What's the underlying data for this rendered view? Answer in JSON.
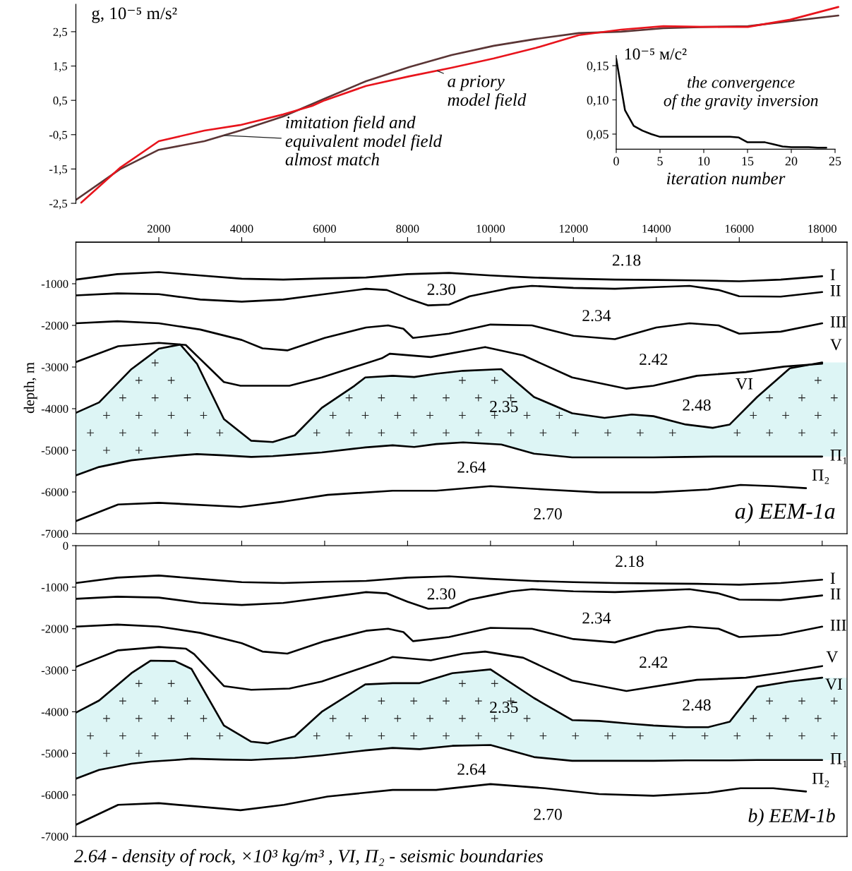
{
  "chart_data": [
    {
      "type": "line",
      "ylabel": "g, 10⁻⁵ m/s²",
      "xlim": [
        0,
        18600
      ],
      "ylim": [
        -3.63,
        3.3
      ],
      "line_style": "solid",
      "xticks": [
        2000,
        4000,
        6000,
        8000,
        10000,
        12000,
        14000,
        16000,
        18000
      ],
      "yticks": [
        {
          "value": -2.5,
          "label": "-2,5"
        },
        {
          "value": -1.5,
          "label": "-1,5"
        },
        {
          "value": -0.5,
          "label": "-0,5"
        },
        {
          "value": 0.5,
          "label": "0,5"
        },
        {
          "value": 1.5,
          "label": "1,5"
        },
        {
          "value": 2.5,
          "label": "2,5"
        }
      ],
      "series": [
        {
          "color": "#5b3535",
          "x": [
            0,
            1060,
            2000,
            3100,
            3960,
            5000,
            6000,
            7000,
            8040,
            9060,
            10080,
            11100,
            12130,
            13150,
            14170,
            15190,
            16210,
            17230,
            18390
          ],
          "values": [
            -2.4,
            -1.51,
            -0.94,
            -0.69,
            -0.38,
            0.03,
            0.55,
            1.06,
            1.47,
            1.82,
            2.09,
            2.29,
            2.46,
            2.5,
            2.6,
            2.64,
            2.66,
            2.81,
            2.97
          ]
        },
        {
          "color": "#e8141c",
          "x": [
            130,
            1060,
            2000,
            3100,
            3960,
            5000,
            5700,
            6000,
            7000,
            8040,
            9060,
            10080,
            11100,
            12130,
            13150,
            14170,
            15190,
            16210,
            17230,
            18390
          ],
          "values": [
            -2.48,
            -1.47,
            -0.69,
            -0.38,
            -0.22,
            0.09,
            0.34,
            0.5,
            0.92,
            1.2,
            1.45,
            1.72,
            2.03,
            2.4,
            2.56,
            2.66,
            2.64,
            2.64,
            2.85,
            3.22
          ]
        }
      ],
      "annotations": [
        {
          "text": "a priory\nmodel field",
          "x": 8720,
          "y": 1.36
        },
        {
          "text": "imitation field and\nequivalent model field\nalmost match",
          "x": 3580,
          "y": -0.52
        }
      ]
    },
    {
      "type": "line",
      "ylabel": "10⁻⁵ м/с²",
      "xlabel": "iteration number",
      "xlim": [
        0,
        25
      ],
      "ylim": [
        0.028,
        0.165
      ],
      "line_style": "solid",
      "xticks": [
        0,
        5,
        10,
        15,
        20,
        25
      ],
      "yticks": [
        {
          "value": 0.05,
          "label": "0,05"
        },
        {
          "value": 0.1,
          "label": "0,10"
        },
        {
          "value": 0.15,
          "label": "0,15"
        }
      ],
      "series": [
        {
          "color": "#000000",
          "x": [
            0,
            1,
            2,
            3,
            4,
            5,
            6,
            7,
            8,
            9,
            10,
            11,
            12,
            13,
            14,
            15,
            16,
            17,
            18,
            19,
            20,
            21,
            22,
            23,
            24
          ],
          "values": [
            0.16,
            0.085,
            0.062,
            0.055,
            0.05,
            0.046,
            0.046,
            0.046,
            0.046,
            0.046,
            0.046,
            0.046,
            0.046,
            0.046,
            0.045,
            0.038,
            0.038,
            0.038,
            0.035,
            0.032,
            0.031,
            0.031,
            0.031,
            0.03,
            0.03
          ]
        }
      ],
      "annotations": [
        "the convergence\nof the gravity inversion"
      ]
    },
    {
      "type": "line",
      "title": "a) EEM-1a",
      "ylabel": "depth, m",
      "xlim": [
        0,
        18600
      ],
      "ylim": [
        -7000,
        0
      ],
      "tick_labels": "y",
      "line_style": "solid",
      "xticks": [
        2000,
        4000,
        6000,
        8000,
        10000,
        12000,
        14000,
        16000,
        18000
      ],
      "yticks": [
        -7000,
        -6000,
        -5000,
        -4000,
        -3000,
        -2000,
        -1000
      ],
      "series": [
        {
          "name": "I",
          "color": "#000000",
          "x": [
            0,
            1000,
            2000,
            3000,
            4000,
            5000,
            6000,
            7000,
            8000,
            9000,
            10000,
            11000,
            12000,
            13000,
            14000,
            15000,
            16000,
            17000,
            18000
          ],
          "values": [
            -900,
            -770,
            -720,
            -800,
            -880,
            -900,
            -870,
            -850,
            -770,
            -740,
            -800,
            -850,
            -880,
            -900,
            -910,
            -920,
            -940,
            -900,
            -820
          ]
        },
        {
          "name": "II",
          "color": "#000000",
          "x": [
            0,
            1000,
            2000,
            3000,
            4000,
            5000,
            6000,
            7000,
            7500,
            8000,
            8500,
            9000,
            9500,
            10000,
            10500,
            11000,
            12000,
            13000,
            14000,
            14800,
            15500,
            16000,
            17000,
            18000
          ],
          "values": [
            -1280,
            -1230,
            -1250,
            -1380,
            -1430,
            -1380,
            -1250,
            -1120,
            -1150,
            -1350,
            -1520,
            -1500,
            -1300,
            -1200,
            -1100,
            -1050,
            -1100,
            -1120,
            -1080,
            -1050,
            -1150,
            -1300,
            -1310,
            -1200
          ]
        },
        {
          "name": "III",
          "color": "#000000",
          "x": [
            0,
            1000,
            2000,
            3000,
            4000,
            4500,
            5100,
            6000,
            7000,
            7530,
            7900,
            8130,
            9000,
            10000,
            11000,
            12000,
            13000,
            14000,
            14800,
            15500,
            16000,
            17000,
            18000
          ],
          "values": [
            -1950,
            -1900,
            -1950,
            -2100,
            -2350,
            -2550,
            -2600,
            -2300,
            -2050,
            -2000,
            -2080,
            -2300,
            -2200,
            -1980,
            -2000,
            -2250,
            -2330,
            -2050,
            -1950,
            -2000,
            -2200,
            -2150,
            -1950
          ]
        },
        {
          "name": "V",
          "color": "#000000",
          "x": [
            0,
            1020,
            2000,
            2650,
            2980,
            3570,
            3970,
            5150,
            5930,
            7380,
            7570,
            8560,
            9870,
            10790,
            11970,
            13280,
            13930,
            14980,
            16160,
            17080,
            18000
          ],
          "values": [
            -2880,
            -2500,
            -2420,
            -2470,
            -2790,
            -3360,
            -3450,
            -3450,
            -3250,
            -2790,
            -2680,
            -2760,
            -2520,
            -2720,
            -3250,
            -3520,
            -3450,
            -3210,
            -3120,
            -2990,
            -2920
          ]
        },
        {
          "name": "VI",
          "color": "#000000",
          "x": [
            0,
            560,
            1340,
            2000,
            2520,
            2920,
            3570,
            4230,
            4750,
            5280,
            5930,
            6720,
            6980,
            7640,
            8160,
            8690,
            9340,
            10260,
            11050,
            11970,
            12750,
            13410,
            13930,
            14710,
            15360,
            15770,
            16430,
            17220,
            18000
          ],
          "values": [
            -4100,
            -3850,
            -3050,
            -2560,
            -2460,
            -2920,
            -4250,
            -4770,
            -4800,
            -4640,
            -3980,
            -3450,
            -3250,
            -3210,
            -3240,
            -3160,
            -3090,
            -3050,
            -3720,
            -4110,
            -4220,
            -4140,
            -4180,
            -4380,
            -4460,
            -4380,
            -3720,
            -3030,
            -2890
          ]
        },
        {
          "name": "Π₁",
          "color": "#000000",
          "x": [
            0,
            560,
            1340,
            2000,
            2520,
            2920,
            3570,
            4230,
            4750,
            5280,
            5930,
            6720,
            6980,
            7640,
            8160,
            8690,
            9340,
            10260,
            11050,
            11970,
            12750,
            13410,
            13930,
            14710,
            15360,
            15770,
            16430,
            17220,
            18000
          ],
          "values": [
            -5600,
            -5400,
            -5240,
            -5170,
            -5120,
            -5090,
            -5120,
            -5160,
            -5140,
            -5100,
            -5050,
            -4960,
            -4930,
            -4880,
            -4920,
            -4850,
            -4810,
            -4860,
            -5080,
            -5170,
            -5170,
            -5170,
            -5170,
            -5160,
            -5150,
            -5150,
            -5150,
            -5150,
            -5150
          ]
        },
        {
          "name": "Π₂",
          "color": "#000000",
          "x": [
            0,
            1020,
            2000,
            3970,
            5020,
            6070,
            7640,
            8690,
            10000,
            11310,
            12620,
            13930,
            15250,
            16030,
            16820,
            17610
          ],
          "values": [
            -6700,
            -6300,
            -6260,
            -6360,
            -6230,
            -6070,
            -5970,
            -5970,
            -5860,
            -5940,
            -6010,
            -6010,
            -5940,
            -5830,
            -5860,
            -5910
          ]
        }
      ],
      "annotations": [
        "2.18",
        "2.30",
        "2.34",
        "2.42",
        "2.35",
        "2.48",
        "2.64",
        "2.70"
      ]
    },
    {
      "type": "line",
      "title": "b) EEM-1b",
      "xlim": [
        0,
        18600
      ],
      "ylim": [
        -7000,
        0
      ],
      "tick_labels": "y",
      "line_style": "solid",
      "xticks": [
        2000,
        4000,
        6000,
        8000,
        10000,
        12000,
        14000,
        16000,
        18000
      ],
      "yticks": [
        -7000,
        -6000,
        -5000,
        -4000,
        -3000,
        -2000,
        -1000,
        0
      ],
      "series": [
        {
          "name": "I",
          "color": "#000000",
          "x": [
            0,
            1000,
            2000,
            3000,
            4000,
            5000,
            6000,
            7000,
            8000,
            9000,
            10000,
            11000,
            12000,
            13000,
            14000,
            15000,
            16000,
            17000,
            18000
          ],
          "values": [
            -900,
            -770,
            -720,
            -800,
            -880,
            -900,
            -870,
            -850,
            -770,
            -740,
            -800,
            -850,
            -880,
            -900,
            -910,
            -920,
            -940,
            -900,
            -820
          ]
        },
        {
          "name": "II",
          "color": "#000000",
          "x": [
            0,
            1000,
            2000,
            3000,
            4000,
            5000,
            6000,
            7000,
            7500,
            8000,
            8500,
            9000,
            9500,
            10000,
            10500,
            11000,
            12000,
            13000,
            14000,
            14800,
            15500,
            16000,
            17000,
            18000
          ],
          "values": [
            -1280,
            -1230,
            -1250,
            -1380,
            -1430,
            -1380,
            -1250,
            -1120,
            -1150,
            -1350,
            -1520,
            -1500,
            -1300,
            -1200,
            -1100,
            -1050,
            -1100,
            -1120,
            -1080,
            -1050,
            -1150,
            -1300,
            -1310,
            -1200
          ]
        },
        {
          "name": "III",
          "color": "#000000",
          "x": [
            0,
            1000,
            2000,
            3000,
            4000,
            4500,
            5100,
            6000,
            7000,
            7530,
            7900,
            8130,
            9000,
            10000,
            11000,
            12000,
            13000,
            14000,
            14800,
            15500,
            16000,
            17000,
            18000
          ],
          "values": [
            -1950,
            -1900,
            -1950,
            -2100,
            -2350,
            -2550,
            -2600,
            -2300,
            -2050,
            -2000,
            -2080,
            -2300,
            -2200,
            -1980,
            -2000,
            -2250,
            -2330,
            -2050,
            -1950,
            -2000,
            -2200,
            -2150,
            -1950
          ]
        },
        {
          "name": "V",
          "color": "#000000",
          "x": [
            0,
            1020,
            2000,
            2650,
            2850,
            3570,
            4230,
            5150,
            5930,
            7380,
            7640,
            8560,
            9340,
            9870,
            10790,
            11970,
            13280,
            14980,
            16160,
            17080,
            18000
          ],
          "values": [
            -2920,
            -2520,
            -2440,
            -2480,
            -2610,
            -3380,
            -3470,
            -3440,
            -3270,
            -2780,
            -2680,
            -2760,
            -2600,
            -2550,
            -2700,
            -3250,
            -3500,
            -3230,
            -3180,
            -3050,
            -2900
          ]
        },
        {
          "name": "VI",
          "color": "#000000",
          "x": [
            0,
            560,
            1340,
            1800,
            2390,
            2790,
            3570,
            4230,
            4620,
            5280,
            5930,
            6980,
            7640,
            8290,
            9080,
            10000,
            11050,
            11970,
            12620,
            13410,
            13930,
            14720,
            15250,
            15770,
            16430,
            17220,
            18000
          ],
          "values": [
            -4020,
            -3730,
            -3070,
            -2770,
            -2780,
            -2970,
            -4330,
            -4720,
            -4760,
            -4590,
            -4000,
            -3340,
            -3310,
            -3310,
            -3070,
            -2980,
            -3670,
            -4200,
            -4220,
            -4290,
            -4330,
            -4370,
            -4370,
            -4240,
            -3400,
            -3270,
            -3180
          ]
        },
        {
          "name": "Π₁",
          "color": "#000000",
          "x": [
            0,
            560,
            1340,
            1800,
            2390,
            2790,
            3570,
            4230,
            4620,
            5280,
            5930,
            6980,
            7640,
            8290,
            9080,
            10000,
            11050,
            11970,
            12620,
            13410,
            13930,
            14720,
            15250,
            15770,
            16430,
            17220,
            18000
          ],
          "values": [
            -5610,
            -5400,
            -5250,
            -5200,
            -5160,
            -5130,
            -5150,
            -5160,
            -5140,
            -5110,
            -5050,
            -4930,
            -4870,
            -4900,
            -4820,
            -4800,
            -5090,
            -5180,
            -5180,
            -5180,
            -5180,
            -5170,
            -5170,
            -5170,
            -5160,
            -5160,
            -5160
          ]
        },
        {
          "name": "Π₂",
          "color": "#000000",
          "x": [
            0,
            1020,
            2000,
            3970,
            5020,
            6070,
            7640,
            8690,
            10000,
            11310,
            12620,
            13930,
            15250,
            16030,
            16820,
            17610
          ],
          "values": [
            -6720,
            -6240,
            -6200,
            -6370,
            -6240,
            -6040,
            -5880,
            -5880,
            -5740,
            -5840,
            -5980,
            -6020,
            -5950,
            -5840,
            -5840,
            -5920
          ]
        }
      ],
      "annotations": [
        "2.18",
        "2.30",
        "2.34",
        "2.42",
        "2.35",
        "2.48",
        "2.64",
        "2.70",
        "2.64 - density of rock, ×10³ kg/m³ , VI, Π₂ - seismic boundaries"
      ]
    }
  ]
}
